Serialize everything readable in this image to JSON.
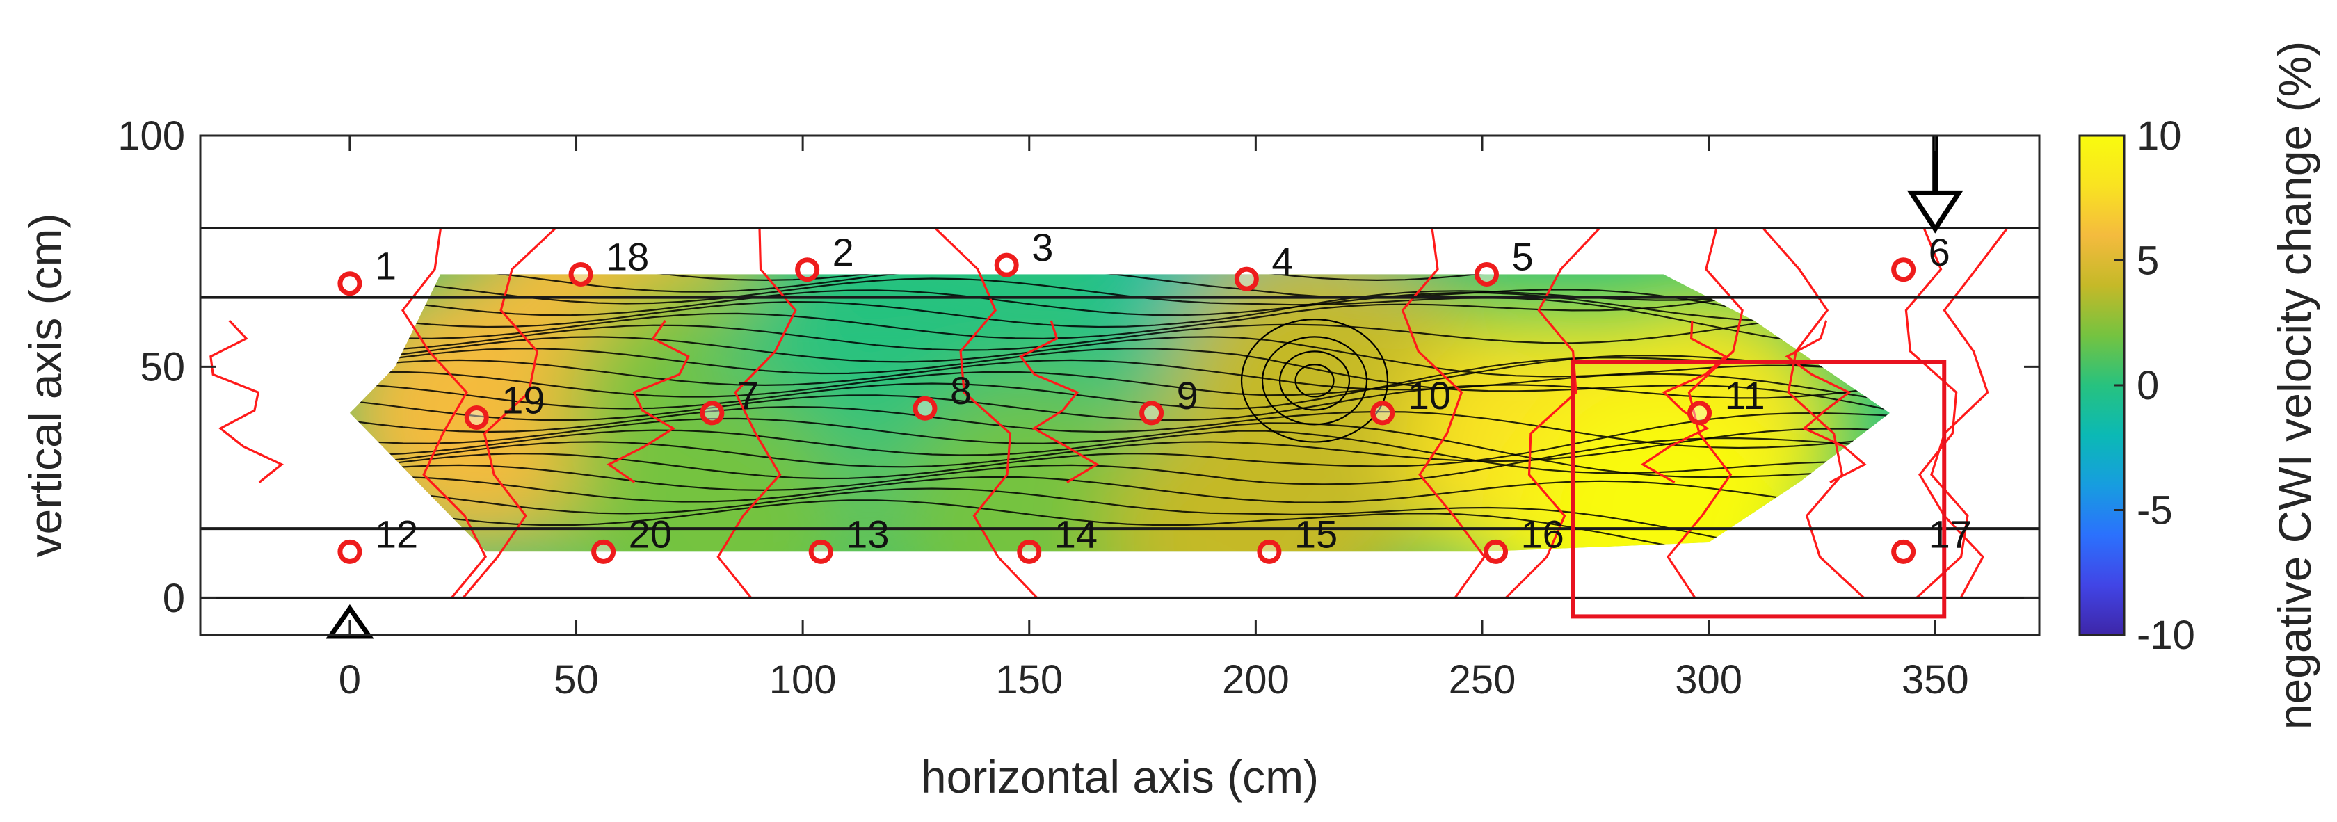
{
  "chart_data": {
    "type": "heatmap",
    "title": "",
    "xlabel": "horizontal axis (cm)",
    "ylabel": "vertical axis (cm)",
    "xlim": [
      -33,
      373
    ],
    "ylim": [
      -8,
      100
    ],
    "x_ticks": [
      0,
      50,
      100,
      150,
      200,
      250,
      300,
      350
    ],
    "y_ticks": [
      0,
      50,
      100
    ],
    "colorbar": {
      "label": "negative CWI velocity change (%)",
      "range": [
        -10,
        10
      ],
      "ticks": [
        10,
        5,
        0,
        -5,
        -10
      ],
      "colormap": "parula",
      "colors": [
        "#3e26a8",
        "#4145e6",
        "#2b71fd",
        "#179ddf",
        "#0bb9b5",
        "#27c27f",
        "#75c340",
        "#c5b928",
        "#f4bb3e",
        "#f9e321",
        "#f9fb0e"
      ]
    },
    "horizontal_lines_y": [
      80,
      65,
      15,
      0
    ],
    "field_outline": [
      [
        20,
        70
      ],
      [
        290,
        70
      ],
      [
        310,
        60
      ],
      [
        340,
        40
      ],
      [
        320,
        25
      ],
      [
        300,
        12
      ],
      [
        250,
        10
      ],
      [
        30,
        10
      ],
      [
        15,
        25
      ],
      [
        0,
        40
      ],
      [
        10,
        50
      ]
    ],
    "field_samples": [
      {
        "x": 28,
        "y": 40,
        "value": 6.5
      },
      {
        "x": 60,
        "y": 62,
        "value": 6
      },
      {
        "x": 80,
        "y": 40,
        "value": 2
      },
      {
        "x": 110,
        "y": 40,
        "value": 0.5
      },
      {
        "x": 127,
        "y": 40,
        "value": 0.2
      },
      {
        "x": 150,
        "y": 35,
        "value": 0
      },
      {
        "x": 177,
        "y": 40,
        "value": 0.5
      },
      {
        "x": 205,
        "y": 68,
        "value": -2
      },
      {
        "x": 213,
        "y": 47,
        "value": 4.5
      },
      {
        "x": 228,
        "y": 40,
        "value": 4
      },
      {
        "x": 265,
        "y": 32,
        "value": 7
      },
      {
        "x": 298,
        "y": 35,
        "value": 7.5
      },
      {
        "x": 290,
        "y": 15,
        "value": 9.5
      },
      {
        "x": 80,
        "y": 15,
        "value": 1.5
      },
      {
        "x": 150,
        "y": 15,
        "value": 1
      },
      {
        "x": 200,
        "y": 15,
        "value": 3.5
      }
    ],
    "sensors": [
      {
        "id": "1",
        "x": 0,
        "y": 68
      },
      {
        "id": "18",
        "x": 51,
        "y": 70
      },
      {
        "id": "2",
        "x": 101,
        "y": 71
      },
      {
        "id": "3",
        "x": 145,
        "y": 72
      },
      {
        "id": "4",
        "x": 198,
        "y": 69
      },
      {
        "id": "5",
        "x": 251,
        "y": 70
      },
      {
        "id": "6",
        "x": 343,
        "y": 71
      },
      {
        "id": "19",
        "x": 28,
        "y": 39
      },
      {
        "id": "7",
        "x": 80,
        "y": 40
      },
      {
        "id": "8",
        "x": 127,
        "y": 41
      },
      {
        "id": "9",
        "x": 177,
        "y": 40
      },
      {
        "id": "10",
        "x": 228,
        "y": 40
      },
      {
        "id": "11",
        "x": 298,
        "y": 40
      },
      {
        "id": "12",
        "x": 0,
        "y": 10
      },
      {
        "id": "20",
        "x": 56,
        "y": 10
      },
      {
        "id": "13",
        "x": 104,
        "y": 10
      },
      {
        "id": "14",
        "x": 150,
        "y": 10
      },
      {
        "id": "15",
        "x": 203,
        "y": 10
      },
      {
        "id": "16",
        "x": 253,
        "y": 10
      },
      {
        "id": "17",
        "x": 343,
        "y": 10
      }
    ],
    "load_marker": {
      "x": 350,
      "y_top": 100,
      "y_tip": 81
    },
    "support_marker": {
      "x": 0,
      "y": -8
    },
    "highlight_box": {
      "x": [
        270,
        352
      ],
      "y": [
        -4,
        51
      ],
      "color": "#e8121f"
    },
    "crack_color": "#ff1a1a",
    "sensor_color": "#ee1c1c"
  }
}
